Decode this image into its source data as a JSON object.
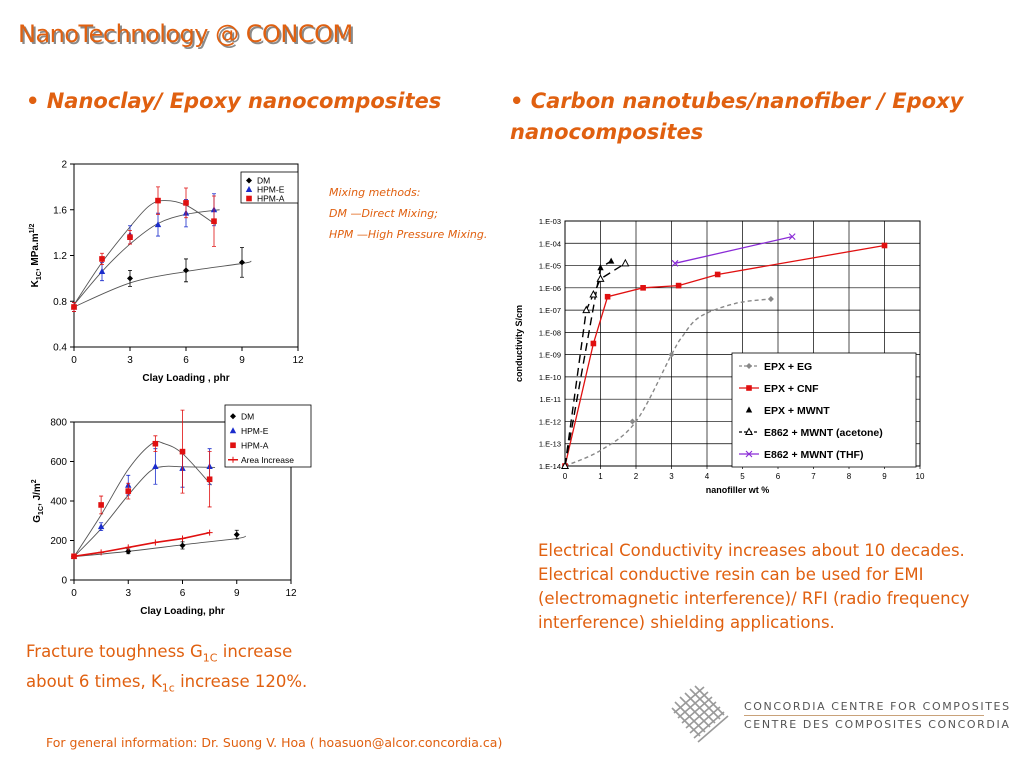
{
  "header": {
    "title": "NanoTechnology @ CONCOM",
    "left_heading": "• Nanoclay/ Epoxy nanocomposites",
    "right_heading": "• Carbon nanotubes/nanofiber / Epoxy nanocomposites"
  },
  "notes": {
    "line1": "Mixing methods:",
    "line2": "DM —Direct Mixing;",
    "line3": "HPM —High Pressure Mixing."
  },
  "left_caption": {
    "p1": "Fracture toughness G",
    "p1_sub": "1C",
    "p2": " increase about 6 times, K",
    "p2_sub": "1c",
    "p3": " increase 120%."
  },
  "right_caption": "Electrical Conductivity increases about 10 decades.   Electrical conductive resin can be used for EMI (electromagnetic interference)/ RFI (radio frequency interference) shielding applications.",
  "footer": "For general information:  Dr. Suong V. Hoa ( hoasuon@alcor.concordia.ca)",
  "logo": {
    "line1": "CONCORDIA CENTRE FOR COMPOSITES",
    "line2": "CENTRE DES COMPOSITES CONCORDIA",
    "mark_icon": "woven-fibre-logo-icon"
  },
  "colors": {
    "accent": "#e06010",
    "red": "#e01010",
    "blue": "#1a2ccc",
    "black": "#000000",
    "purple": "#8a2bd6",
    "grey": "#777777"
  },
  "chart_data": [
    {
      "type": "line",
      "ylabel_main": "K",
      "ylabel_sub": "1C",
      "ylabel_unit": ", MPa.m",
      "ylabel_sup": "1/2",
      "xlabel": "Clay Loading , phr",
      "xlim": [
        0,
        12
      ],
      "ylim": [
        0.4,
        2
      ],
      "xticks": [
        "0",
        "3",
        "6",
        "9",
        "12"
      ],
      "yticks": [
        "0.4",
        "0.8",
        "1.2",
        "1.6",
        "2"
      ],
      "legend_position": "top-right",
      "series": [
        {
          "name": "DM",
          "color": "#000000",
          "marker": "diamond",
          "x": [
            0,
            3,
            6,
            9
          ],
          "y": [
            0.75,
            1.0,
            1.07,
            1.14
          ],
          "err": [
            0.04,
            0.07,
            0.1,
            0.13
          ]
        },
        {
          "name": "HPM-E",
          "color": "#1a2ccc",
          "marker": "triangle",
          "x": [
            0,
            1.5,
            3,
            4.5,
            6,
            7.5
          ],
          "y": [
            0.75,
            1.06,
            1.38,
            1.47,
            1.57,
            1.6
          ],
          "err": [
            0.04,
            0.08,
            0.08,
            0.1,
            0.12,
            0.14
          ]
        },
        {
          "name": "HPM-A",
          "color": "#e01010",
          "marker": "square",
          "x": [
            0,
            1.5,
            3,
            4.5,
            6,
            7.5
          ],
          "y": [
            0.75,
            1.17,
            1.36,
            1.68,
            1.66,
            1.5
          ],
          "err": [
            0.04,
            0.05,
            0.06,
            0.12,
            0.13,
            0.22
          ]
        }
      ],
      "trends": [
        {
          "name": "DM",
          "color": "#000000",
          "x": [
            0,
            3,
            6,
            9,
            9.5
          ],
          "y": [
            0.75,
            0.96,
            1.06,
            1.13,
            1.15
          ]
        },
        {
          "name": "HPM-E",
          "color": "#000000",
          "x": [
            0,
            1.5,
            3,
            4.5,
            6,
            7.8
          ],
          "y": [
            0.77,
            1.06,
            1.3,
            1.48,
            1.56,
            1.6
          ]
        },
        {
          "name": "HPM-A",
          "color": "#000000",
          "x": [
            0,
            1.5,
            3,
            4,
            4.8,
            6,
            7.6
          ],
          "y": [
            0.77,
            1.14,
            1.45,
            1.63,
            1.68,
            1.64,
            1.47
          ]
        }
      ]
    },
    {
      "type": "line",
      "ylabel_main": "G",
      "ylabel_sub": "1C",
      "ylabel_unit": ", J/m",
      "ylabel_sup": "2",
      "xlabel": "Clay Loading, phr",
      "xlim": [
        0,
        12
      ],
      "ylim": [
        0,
        800
      ],
      "xticks": [
        "0",
        "3",
        "6",
        "9",
        "12"
      ],
      "yticks": [
        "0",
        "200",
        "400",
        "600",
        "800"
      ],
      "legend_position": "top-right",
      "series": [
        {
          "name": "DM",
          "color": "#000000",
          "marker": "diamond",
          "x": [
            0,
            3,
            6,
            9
          ],
          "y": [
            120,
            145,
            175,
            230
          ],
          "err": [
            10,
            12,
            18,
            22
          ]
        },
        {
          "name": "HPM-E",
          "color": "#1a2ccc",
          "marker": "triangle",
          "x": [
            0,
            1.5,
            3,
            4.5,
            6,
            7.5
          ],
          "y": [
            120,
            270,
            480,
            575,
            565,
            575
          ],
          "err": [
            10,
            20,
            50,
            90,
            95,
            90
          ]
        },
        {
          "name": "HPM-A",
          "color": "#e01010",
          "marker": "square",
          "x": [
            0,
            1.5,
            3,
            4.5,
            6,
            7.5
          ],
          "y": [
            120,
            380,
            450,
            690,
            650,
            510
          ],
          "err": [
            10,
            45,
            40,
            40,
            210,
            140
          ]
        },
        {
          "name": "Area Increase",
          "color": "#e01010",
          "marker": "plus",
          "line": true,
          "x": [
            0,
            1.5,
            3,
            4.5,
            6,
            7.5
          ],
          "y": [
            120,
            140,
            165,
            190,
            210,
            240
          ],
          "err": []
        }
      ],
      "trends": [
        {
          "name": "DM",
          "color": "#000000",
          "x": [
            0,
            3,
            6,
            9,
            9.5
          ],
          "y": [
            118,
            145,
            178,
            210,
            222
          ]
        },
        {
          "name": "HPM-E",
          "color": "#000000",
          "x": [
            0,
            1.5,
            3,
            4.2,
            5,
            6,
            7.8
          ],
          "y": [
            118,
            260,
            430,
            550,
            575,
            573,
            570
          ]
        },
        {
          "name": "HPM-A",
          "color": "#000000",
          "x": [
            0,
            1.5,
            3,
            4.3,
            5,
            6,
            7.6
          ],
          "y": [
            118,
            330,
            560,
            690,
            690,
            640,
            480
          ]
        }
      ]
    },
    {
      "type": "line",
      "scale": "log",
      "ylabel": "conductivity   S/cm",
      "xlabel": "nanofiller wt %",
      "xlim": [
        0,
        10
      ],
      "ylim_exp": [
        -14,
        -3
      ],
      "xticks": [
        "0",
        "1",
        "2",
        "3",
        "4",
        "5",
        "6",
        "7",
        "8",
        "9",
        "10"
      ],
      "yticks": [
        "1.E-03",
        "1.E-04",
        "1.E-05",
        "1.E-06",
        "1.E-07",
        "1.E-08",
        "1.E-09",
        "1.E-10",
        "1.E-11",
        "1.E-12",
        "1.E-13",
        "1.E-14"
      ],
      "grid": true,
      "legend_position": "bottom-right",
      "series": [
        {
          "name": "EPX + EG",
          "color": "#888888",
          "marker": "diamond",
          "dash": "4,3",
          "x": [
            0,
            1,
            2,
            3,
            3.3,
            3.8,
            4.8,
            5.8
          ],
          "y_exp": [
            -14,
            -13.3,
            -12,
            -9,
            -8.2,
            -7.3,
            -6.7,
            -6.5
          ],
          "markers_x": [
            0,
            1.9,
            3,
            5.8
          ],
          "markers_y_exp": [
            -14,
            -12,
            -9,
            -6.5
          ]
        },
        {
          "name": "EPX + CNF",
          "color": "#e01010",
          "marker": "square",
          "x": [
            0,
            0.8,
            1.2,
            2.2,
            3.2,
            4.3,
            9
          ],
          "y_exp": [
            -14,
            -8.5,
            -6.4,
            -6.0,
            -5.9,
            -5.4,
            -4.1
          ]
        },
        {
          "name": "EPX + MWNT",
          "color": "#000000",
          "marker": "triangle-filled",
          "dash": "8,5",
          "x": [
            0,
            1,
            1.3
          ],
          "y_exp": [
            -14,
            -5.1,
            -4.8
          ]
        },
        {
          "name": "E862 + MWNT (acetone)",
          "color": "#000000",
          "marker": "triangle-open",
          "dash": "8,5",
          "x": [
            0,
            0.6,
            0.8,
            1.0,
            1.7
          ],
          "y_exp": [
            -14,
            -7.0,
            -6.3,
            -5.6,
            -4.9
          ]
        },
        {
          "name": "E862 + MWNT (THF)",
          "color": "#8a2bd6",
          "marker": "x",
          "x": [
            3.1,
            6.4
          ],
          "y_exp": [
            -4.9,
            -3.7
          ]
        }
      ]
    }
  ]
}
